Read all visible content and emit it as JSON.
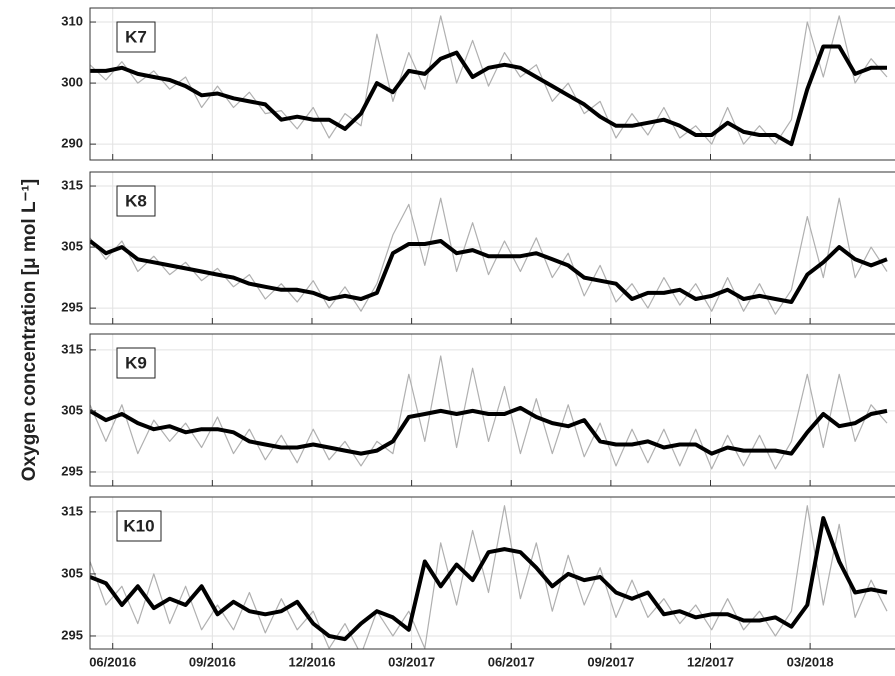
{
  "chart_data": {
    "type": "line",
    "ylabel": "Oxygen concentration [μ mol L⁻¹]",
    "xlim": [
      2016.36,
      2018.38
    ],
    "xticks": [
      {
        "value": 2016.417,
        "label": "06/2016"
      },
      {
        "value": 2016.667,
        "label": "09/2016"
      },
      {
        "value": 2016.917,
        "label": "12/2016"
      },
      {
        "value": 2017.167,
        "label": "03/2017"
      },
      {
        "value": 2017.417,
        "label": "06/2017"
      },
      {
        "value": 2017.667,
        "label": "09/2017"
      },
      {
        "value": 2017.917,
        "label": "12/2017"
      },
      {
        "value": 2018.167,
        "label": "03/2018"
      }
    ],
    "grid": true,
    "x": [
      2016.36,
      2016.4,
      2016.44,
      2016.48,
      2016.52,
      2016.56,
      2016.6,
      2016.64,
      2016.68,
      2016.72,
      2016.76,
      2016.8,
      2016.84,
      2016.88,
      2016.92,
      2016.96,
      2017.0,
      2017.04,
      2017.08,
      2017.12,
      2017.16,
      2017.2,
      2017.24,
      2017.28,
      2017.32,
      2017.36,
      2017.4,
      2017.44,
      2017.48,
      2017.52,
      2017.56,
      2017.6,
      2017.64,
      2017.68,
      2017.72,
      2017.76,
      2017.8,
      2017.84,
      2017.88,
      2017.92,
      2017.96,
      2018.0,
      2018.04,
      2018.08,
      2018.12,
      2018.16,
      2018.2,
      2018.24,
      2018.28,
      2018.32,
      2018.36
    ],
    "panels": [
      {
        "label": "K7",
        "ylim": [
          287.4,
          312.3
        ],
        "yticks": [
          290,
          300,
          310
        ],
        "series": [
          {
            "color": "#b0b0b0",
            "values": [
              303,
              300.5,
              303.5,
              300,
              302,
              299,
              301,
              296,
              299.5,
              296,
              298.5,
              295,
              295.5,
              292.5,
              296,
              291,
              295,
              293,
              308,
              297,
              305,
              299,
              311,
              300,
              307,
              299.5,
              305,
              301,
              303,
              297,
              300,
              295,
              297,
              291,
              295,
              291.5,
              296,
              291,
              293,
              290,
              296,
              290,
              293,
              290,
              294,
              310,
              301,
              311,
              300,
              304,
              301
            ]
          },
          {
            "color": "#000000",
            "values": [
              302,
              302,
              302.5,
              301.5,
              301,
              300.5,
              299.5,
              298,
              298.3,
              297.5,
              297,
              296.5,
              294,
              294.5,
              294,
              294,
              292.5,
              295,
              300,
              298.5,
              302,
              301.5,
              304,
              305,
              301,
              302.5,
              303,
              302.5,
              301,
              299.5,
              298,
              296.5,
              294.5,
              293,
              293,
              293.5,
              294,
              293,
              291.5,
              291.5,
              293.5,
              292,
              291.5,
              291.5,
              290,
              299,
              306,
              306,
              301.5,
              302.5,
              302.5
            ]
          }
        ]
      },
      {
        "label": "K8",
        "ylim": [
          292.4,
          317.3
        ],
        "yticks": [
          295,
          305,
          315
        ],
        "series": [
          {
            "color": "#b0b0b0",
            "values": [
              306.5,
              303,
              306,
              301,
              303.5,
              300.5,
              302.5,
              299.5,
              301.5,
              298.5,
              300.5,
              296.5,
              299,
              296,
              299.5,
              295,
              298.5,
              294.5,
              299,
              307,
              312,
              302,
              313,
              301,
              309,
              300.5,
              306,
              301,
              306.5,
              300,
              304,
              297,
              302,
              296,
              299,
              295,
              300,
              295.5,
              299,
              294.5,
              300,
              294.5,
              299,
              294,
              298,
              310,
              300,
              313,
              300,
              305,
              301
            ]
          },
          {
            "color": "#000000",
            "values": [
              306,
              304,
              305,
              303,
              302.5,
              302,
              301.5,
              301,
              300.5,
              300,
              299,
              298.5,
              298,
              298,
              297.5,
              296.5,
              297,
              296.5,
              297.5,
              304,
              305.5,
              305.5,
              306,
              304,
              304.5,
              303.5,
              303.5,
              303.5,
              304,
              303,
              302,
              300,
              299.5,
              299,
              296.5,
              297.5,
              297.5,
              298,
              296.5,
              297,
              298,
              296.5,
              297,
              296.5,
              296,
              300.5,
              302.5,
              305,
              303,
              302,
              303
            ]
          }
        ]
      },
      {
        "label": "K9",
        "ylim": [
          292.7,
          317.6
        ],
        "yticks": [
          295,
          305,
          315
        ],
        "series": [
          {
            "color": "#b0b0b0",
            "values": [
              306,
              300,
              306,
              298,
              303.5,
              300,
              303,
              299,
              304,
              298,
              302,
              297,
              301,
              296.5,
              302,
              297,
              300,
              296,
              300,
              298,
              311,
              300,
              314,
              299,
              312,
              300,
              309,
              298,
              307,
              298,
              306,
              297.5,
              303,
              296,
              302,
              296.5,
              302,
              296,
              302,
              295.5,
              301,
              296,
              301,
              295.5,
              300,
              311,
              299,
              311,
              300,
              306,
              303
            ]
          },
          {
            "color": "#000000",
            "values": [
              305,
              303.5,
              304.5,
              303,
              302,
              302.5,
              301.5,
              302,
              302,
              301.5,
              300,
              299.5,
              299,
              299,
              299.5,
              299,
              298.5,
              298,
              298.5,
              300,
              304,
              304.5,
              305,
              304.5,
              305,
              304.5,
              304.5,
              305.5,
              304,
              303,
              302.5,
              303.5,
              300,
              299.5,
              299.5,
              300,
              299,
              299.5,
              299.5,
              298,
              299,
              298.5,
              298.5,
              298.5,
              298,
              301.5,
              304.5,
              302.5,
              303,
              304.5,
              305
            ]
          }
        ]
      },
      {
        "label": "K10",
        "ylim": [
          292.9,
          317.4
        ],
        "yticks": [
          295,
          305,
          315
        ],
        "series": [
          {
            "color": "#b0b0b0",
            "values": [
              307,
              300,
              303,
              297,
              305,
              297,
              303,
              296,
              300,
              296,
              302,
              295.5,
              301,
              296,
              299,
              293,
              297,
              292,
              299,
              295,
              299,
              293,
              310,
              300,
              312,
              302,
              316,
              301,
              310,
              299,
              308,
              300,
              306,
              298,
              304,
              298,
              301,
              297,
              300,
              296,
              301,
              296,
              299,
              295,
              299,
              316,
              300,
              313,
              298,
              304,
              299
            ]
          },
          {
            "color": "#000000",
            "values": [
              304.5,
              303.5,
              300,
              303,
              299.5,
              301,
              300,
              303,
              298.5,
              300.5,
              299,
              298.5,
              299,
              300.5,
              297,
              295,
              294.5,
              297,
              299,
              298,
              296,
              307,
              303,
              306.5,
              304,
              308.5,
              309,
              308.5,
              306,
              303,
              305,
              304,
              304.5,
              302,
              301,
              302,
              298.5,
              299,
              298,
              298.5,
              298.5,
              297.5,
              297.5,
              298,
              296.5,
              300,
              314,
              307,
              302,
              302.5,
              302
            ]
          }
        ]
      }
    ]
  }
}
